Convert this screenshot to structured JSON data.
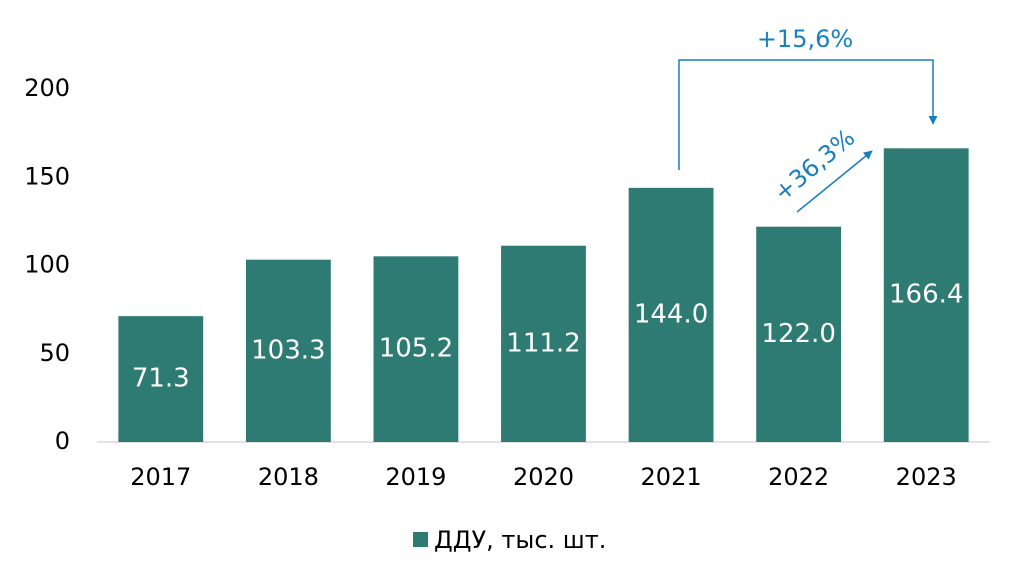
{
  "chart_data": {
    "type": "bar",
    "categories": [
      "2017",
      "2018",
      "2019",
      "2020",
      "2021",
      "2022",
      "2023"
    ],
    "series": [
      {
        "name": "ДДУ, тыс. шт.",
        "color": "#2e7b73",
        "values": [
          71.3,
          103.3,
          105.2,
          111.2,
          144.0,
          122.0,
          166.4
        ],
        "value_labels": [
          "71.3",
          "103.3",
          "105.2",
          "111.2",
          "144.0",
          "122.0",
          "166.4"
        ]
      }
    ],
    "ylim": [
      0,
      200
    ],
    "yticks": [
      0,
      50,
      100,
      150,
      200
    ],
    "grid": false,
    "legend": "bottom",
    "annotations": [
      "+15,6%",
      "+36,3%"
    ]
  }
}
